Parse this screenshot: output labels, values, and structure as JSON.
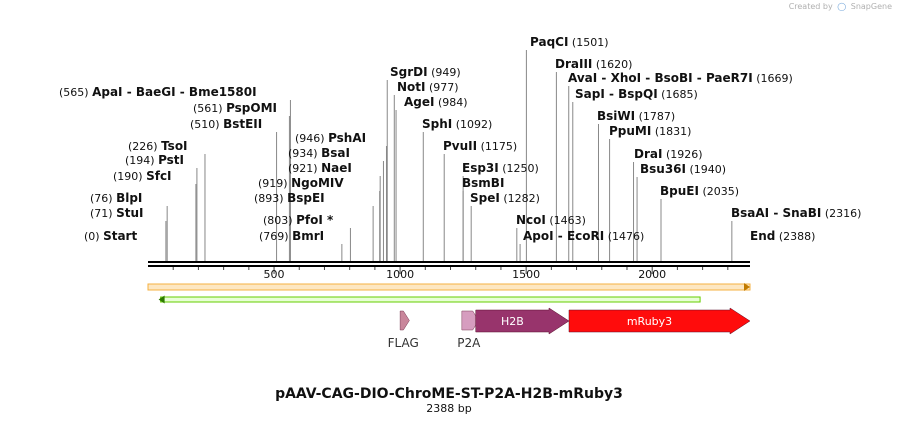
{
  "watermark": {
    "prefix": "Created by",
    "brand": "SnapGene"
  },
  "map": {
    "length": 2388,
    "title": "pAAV-CAG-DIO-ChroME-ST-P2A-H2B-mRuby3",
    "subtitle": "2388 bp",
    "ticks": [
      "500",
      "1000",
      "1500",
      "2000"
    ],
    "sites_left": [
      {
        "pos": "(0)",
        "name": "Start",
        "italic": true,
        "bp": 0
      },
      {
        "pos": "(71)",
        "name": "StuI",
        "bp": 71
      },
      {
        "pos": "(76)",
        "name": "BlpI",
        "bp": 76
      },
      {
        "pos": "(190)",
        "name": "SfcI",
        "bp": 190
      },
      {
        "pos": "(194)",
        "name": "PstI",
        "bp": 194
      },
      {
        "pos": "(226)",
        "name": "TsoI",
        "bp": 226
      },
      {
        "pos": "(510)",
        "name": "BstEII",
        "bp": 510
      },
      {
        "pos": "(561)",
        "name": "PspOMI",
        "bp": 561
      },
      {
        "pos": "(565)",
        "multi": [
          "ApaI",
          "BaeGI",
          "Bme1580I"
        ],
        "bp": 565
      }
    ],
    "sites_mid": [
      {
        "pos": "(769)",
        "name": "BmrI",
        "bp": 769
      },
      {
        "pos": "(803)",
        "name": "PfoI *",
        "bp": 803
      },
      {
        "pos": "(893)",
        "name": "BspEI",
        "bp": 893
      },
      {
        "pos": "(919)",
        "name": "NgoMIV",
        "bp": 919
      },
      {
        "pos": "(921)",
        "name": "NaeI",
        "bp": 921
      },
      {
        "pos": "(934)",
        "name": "BsaI",
        "bp": 934
      },
      {
        "pos": "(946)",
        "name": "PshAI",
        "bp": 946
      }
    ],
    "sites_right": [
      {
        "name": "SgrDI",
        "pos": "(949)",
        "bp": 949
      },
      {
        "name": "NotI",
        "pos": "(977)",
        "bp": 977
      },
      {
        "name": "AgeI",
        "pos": "(984)",
        "bp": 984
      },
      {
        "name": "SphI",
        "pos": "(1092)",
        "bp": 1092
      },
      {
        "name": "PvuII",
        "pos": "(1175)",
        "bp": 1175
      },
      {
        "name": "Esp3I",
        "pos": "(1250)",
        "bp": 1250
      },
      {
        "name": "BsmBI",
        "pos": "",
        "bp": 1250
      },
      {
        "name": "SpeI",
        "pos": "(1282)",
        "bp": 1282
      },
      {
        "name": "PaqCI",
        "pos": "(1501)",
        "bp": 1501
      },
      {
        "name": "NcoI",
        "pos": "(1463)",
        "bp": 1463
      },
      {
        "name": "ApoI",
        "name2": "EcoRI",
        "pos": "(1476)",
        "bp": 1476
      },
      {
        "name": "DraIII",
        "pos": "(1620)",
        "bp": 1620
      },
      {
        "multi": [
          "AvaI",
          "XhoI",
          "BsoBI",
          "PaeR7I"
        ],
        "pos": "(1669)",
        "bp": 1669
      },
      {
        "multi": [
          "SapI",
          "BspQI"
        ],
        "pos": "(1685)",
        "bp": 1685
      },
      {
        "name": "BsiWI",
        "pos": "(1787)",
        "bp": 1787
      },
      {
        "name": "PpuMI",
        "pos": "(1831)",
        "bp": 1831
      },
      {
        "name": "DraI",
        "pos": "(1926)",
        "bp": 1926
      },
      {
        "name": "Bsu36I",
        "pos": "(1940)",
        "bp": 1940
      },
      {
        "name": "BpuEI",
        "pos": "(2035)",
        "bp": 2035
      },
      {
        "multi": [
          "BsaAI",
          "SnaBI"
        ],
        "pos": "(2316)",
        "bp": 2316
      },
      {
        "name": "End",
        "italic": true,
        "pos": "(2388)",
        "bp": 2388
      }
    ],
    "features": [
      {
        "label": "FLAG",
        "type": "small-arrow",
        "color": "#c9869b",
        "start": 1000,
        "end": 1025
      },
      {
        "label": "P2A",
        "type": "small-arrow",
        "color": "#d69dbf",
        "start": 1245,
        "end": 1300
      },
      {
        "label": "H2B",
        "type": "arrow",
        "color": "#98346c",
        "start": 1300,
        "end": 1670
      },
      {
        "label": "mRuby3",
        "type": "arrow",
        "color": "#ff0c0c",
        "start": 1670,
        "end": 2388
      }
    ],
    "colors": {
      "backbone": "#000000",
      "orange_bar": "#f5b041",
      "green_bar": "#66cc00"
    }
  }
}
